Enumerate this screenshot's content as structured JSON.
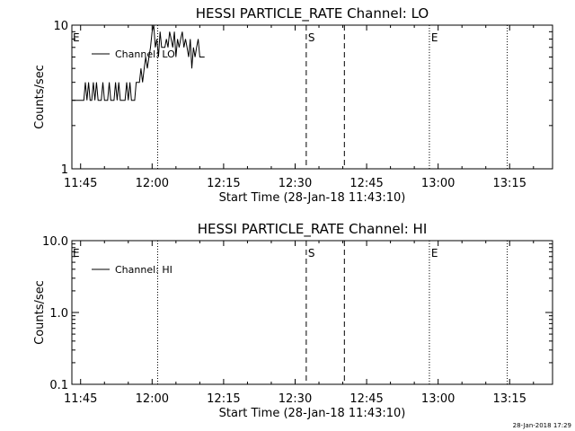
{
  "footer": {
    "timestamp": "28-Jan-2018 17:29"
  },
  "chart_data": [
    {
      "type": "line",
      "title": "HESSI PARTICLE_RATE Channel: LO",
      "xlabel": "Start Time (28-Jan-18 11:43:10)",
      "ylabel": "Counts/sec",
      "yscale": "log",
      "ylim": [
        1,
        10
      ],
      "ytick_labels": [
        "1",
        "10"
      ],
      "xlim": [
        "11:43:10",
        "13:24:00"
      ],
      "xtick_labels": [
        "11:45",
        "12:00",
        "12:15",
        "12:30",
        "12:45",
        "13:00",
        "13:15"
      ],
      "legend": {
        "position": "top-left",
        "entries": [
          "Channel: LO"
        ]
      },
      "vlines": [
        {
          "time": "12:01:10",
          "style": "dotted"
        },
        {
          "time": "12:32:20",
          "style": "dashed",
          "label": "S"
        },
        {
          "time": "12:40:20",
          "style": "dashed"
        },
        {
          "time": "12:58:10",
          "style": "dotted",
          "label": "E"
        },
        {
          "time": "13:14:30",
          "style": "dotted"
        }
      ],
      "edge_markers": [
        {
          "time": "11:43:10",
          "label": "E"
        }
      ],
      "series": [
        {
          "name": "Channel: LO",
          "x": [
            "11:43:10",
            "11:45:40",
            "11:46:00",
            "11:46:20",
            "11:46:40",
            "11:47:00",
            "11:47:20",
            "11:47:40",
            "11:48:00",
            "11:48:20",
            "11:48:40",
            "11:49:00",
            "11:49:20",
            "11:49:40",
            "11:50:00",
            "11:50:20",
            "11:50:40",
            "11:51:00",
            "11:51:20",
            "11:51:40",
            "11:52:00",
            "11:52:20",
            "11:52:40",
            "11:53:00",
            "11:53:20",
            "11:53:40",
            "11:54:00",
            "11:54:20",
            "11:54:40",
            "11:55:00",
            "11:55:20",
            "11:55:40",
            "11:56:00",
            "11:56:20",
            "11:56:40",
            "11:57:00",
            "11:57:20",
            "11:57:40",
            "11:58:00",
            "11:58:20",
            "11:58:40",
            "11:59:00",
            "11:59:20",
            "11:59:40",
            "12:00:00",
            "12:00:20",
            "12:00:40",
            "12:01:00",
            "12:01:20",
            "12:01:40",
            "12:02:00",
            "12:02:20",
            "12:02:40",
            "12:03:00",
            "12:03:20",
            "12:03:40",
            "12:04:00",
            "12:04:20",
            "12:04:40",
            "12:05:00",
            "12:05:20",
            "12:05:40",
            "12:06:00",
            "12:06:20",
            "12:06:40",
            "12:07:00",
            "12:07:20",
            "12:07:40",
            "12:08:00",
            "12:08:20",
            "12:08:40",
            "12:09:00",
            "12:09:20",
            "12:09:40",
            "12:10:00",
            "12:10:20",
            "12:10:40",
            "12:11:00"
          ],
          "values": [
            3,
            3,
            4,
            3,
            4,
            3,
            3,
            4,
            3,
            4,
            3,
            3,
            3,
            4,
            3,
            3,
            3,
            4,
            3,
            3,
            3,
            4,
            3,
            4,
            3,
            3,
            3,
            3,
            4,
            3,
            4,
            3,
            3,
            3,
            4,
            4,
            4,
            5,
            4,
            5,
            6,
            5,
            6,
            7,
            9,
            10,
            7,
            8,
            6,
            9,
            7,
            7,
            7,
            8,
            7,
            9,
            8,
            7,
            9,
            6,
            8,
            7,
            8,
            9,
            7,
            8,
            7,
            6,
            8,
            5,
            7,
            6,
            7,
            8,
            6,
            6,
            6,
            6
          ]
        }
      ]
    },
    {
      "type": "line",
      "title": "HESSI PARTICLE_RATE Channel: HI",
      "xlabel": "Start Time (28-Jan-18 11:43:10)",
      "ylabel": "Counts/sec",
      "yscale": "log",
      "ylim": [
        0.1,
        10
      ],
      "ytick_labels": [
        "0.1",
        "1.0",
        "10.0"
      ],
      "xlim": [
        "11:43:10",
        "13:24:00"
      ],
      "xtick_labels": [
        "11:45",
        "12:00",
        "12:15",
        "12:30",
        "12:45",
        "13:00",
        "13:15"
      ],
      "legend": {
        "position": "top-left",
        "entries": [
          "Channel: HI"
        ]
      },
      "vlines": [
        {
          "time": "12:01:10",
          "style": "dotted"
        },
        {
          "time": "12:32:20",
          "style": "dashed",
          "label": "S"
        },
        {
          "time": "12:40:20",
          "style": "dashed"
        },
        {
          "time": "12:58:10",
          "style": "dotted",
          "label": "E"
        },
        {
          "time": "13:14:30",
          "style": "dotted"
        }
      ],
      "edge_markers": [
        {
          "time": "11:43:10",
          "label": "E"
        }
      ],
      "series": [
        {
          "name": "Channel: HI",
          "x": [],
          "values": []
        }
      ]
    }
  ]
}
